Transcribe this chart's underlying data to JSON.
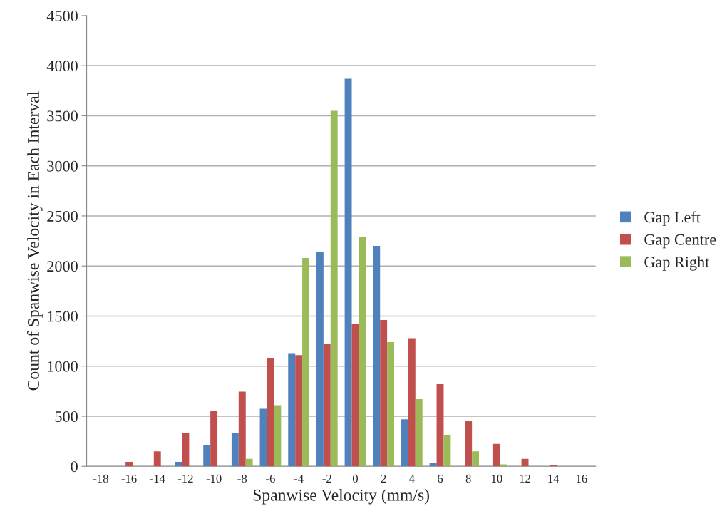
{
  "chart_data": {
    "type": "bar",
    "xlabel": "Spanwise Velocity (mm/s)",
    "ylabel": "Count of Spanwise Velocity in Each Interval",
    "categories": [
      "-18",
      "-16",
      "-14",
      "-12",
      "-10",
      "-8",
      "-6",
      "-4",
      "-2",
      "0",
      "2",
      "4",
      "6",
      "8",
      "10",
      "12",
      "14",
      "16"
    ],
    "series": [
      {
        "name": "Gap Left",
        "color": "#4f81bd",
        "values": [
          0,
          0,
          0,
          45,
          210,
          330,
          575,
          1130,
          2140,
          3870,
          2200,
          470,
          35,
          0,
          0,
          0,
          0,
          0
        ]
      },
      {
        "name": "Gap Centre",
        "color": "#c0504d",
        "values": [
          0,
          45,
          150,
          335,
          550,
          745,
          1080,
          1110,
          1220,
          1420,
          1460,
          1280,
          820,
          455,
          225,
          75,
          15,
          0
        ]
      },
      {
        "name": "Gap Right",
        "color": "#9bbb59",
        "values": [
          0,
          0,
          0,
          0,
          0,
          75,
          610,
          2080,
          3550,
          2290,
          1240,
          670,
          310,
          150,
          20,
          0,
          0,
          0
        ]
      }
    ],
    "ylim": [
      0,
      4500
    ],
    "yticks": [
      0,
      500,
      1000,
      1500,
      2000,
      2500,
      3000,
      3500,
      4000,
      4500
    ],
    "grid": "y",
    "legend": "right"
  }
}
